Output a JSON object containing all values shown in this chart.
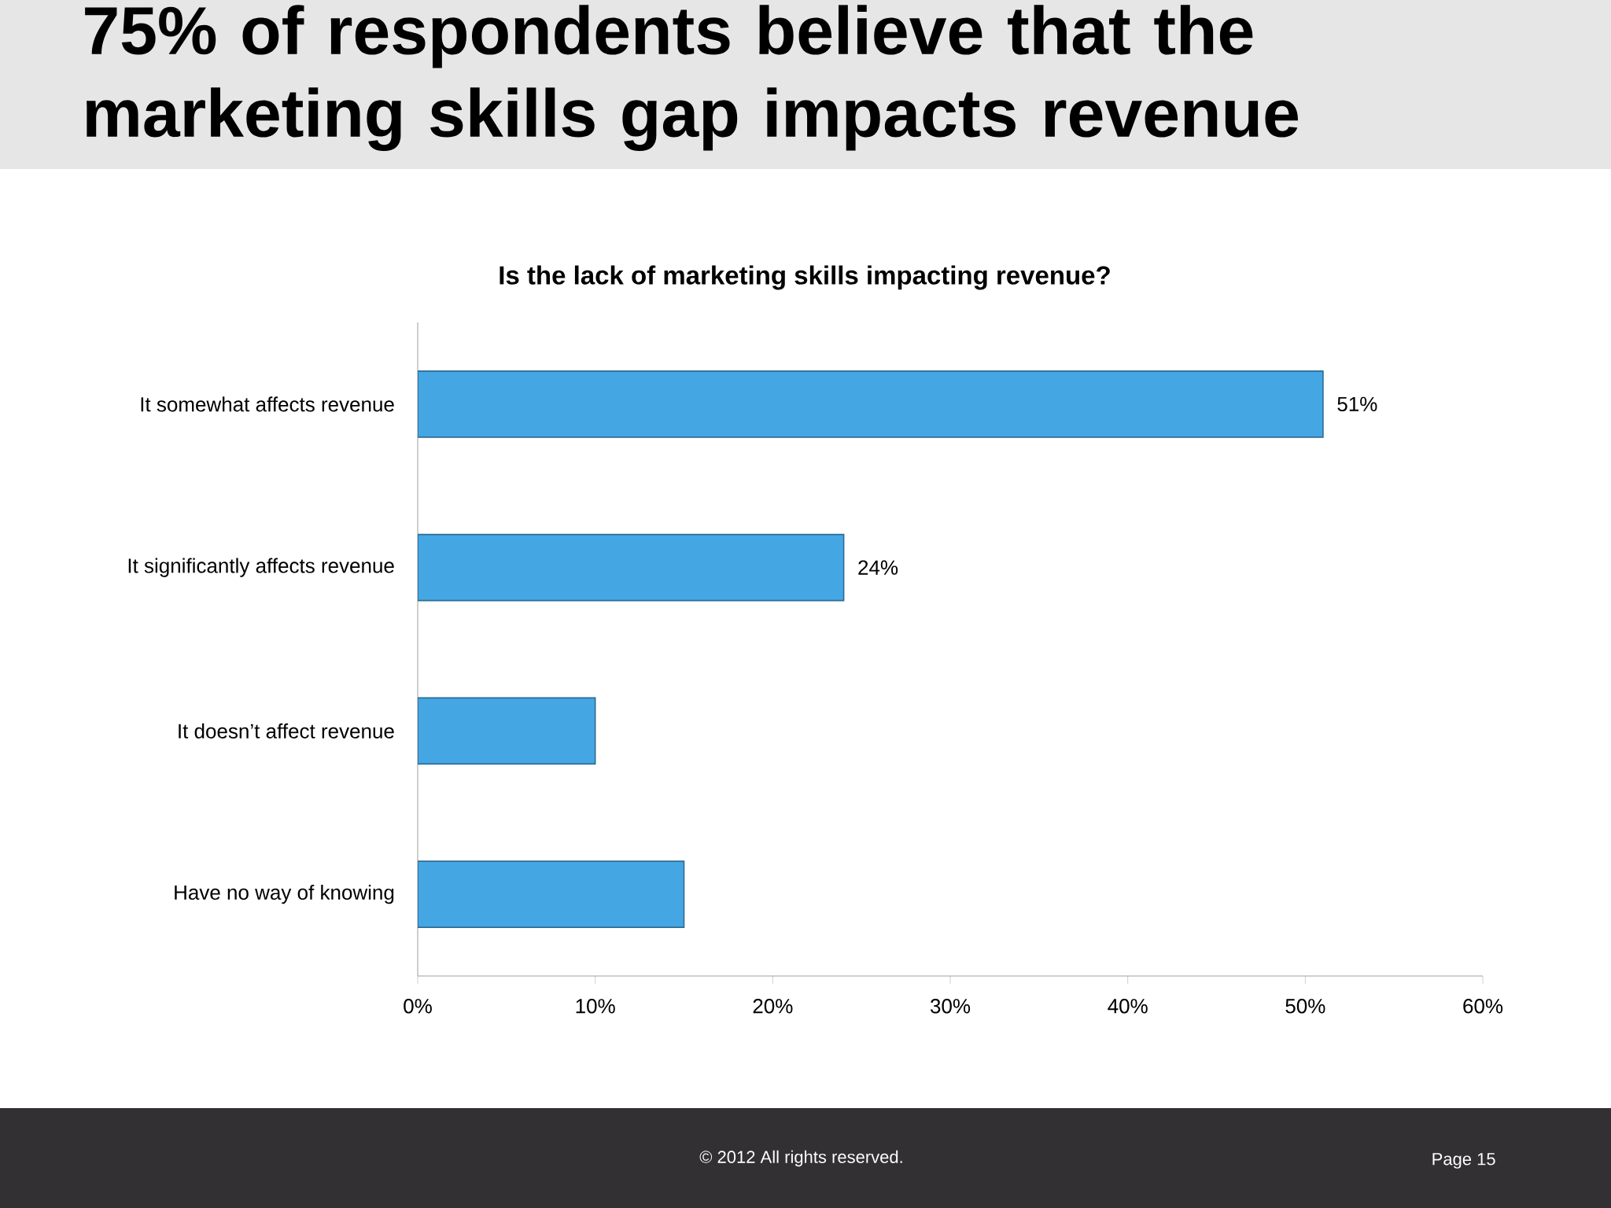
{
  "chart_data": {
    "type": "bar",
    "orientation": "horizontal",
    "title": "75% of respondents believe that the marketing skills gap impacts revenue",
    "subtitle": "Is the lack of marketing skills impacting revenue?",
    "categories": [
      "It somewhat affects revenue",
      "It significantly affects revenue",
      "It doesn’t affect revenue",
      "Have no way of knowing"
    ],
    "values": [
      51,
      24,
      10,
      15
    ],
    "color": "#45a6e4",
    "value_labels": [
      "51%",
      "24%",
      null,
      null
    ],
    "xlim": [
      0,
      60
    ],
    "xticks": [
      {
        "value": 0,
        "label": "0%"
      },
      {
        "value": 10,
        "label": "10%"
      },
      {
        "value": 20,
        "label": "20%"
      },
      {
        "value": 30,
        "label": "30%"
      },
      {
        "value": 40,
        "label": "40%"
      },
      {
        "value": 50,
        "label": "50%"
      },
      {
        "value": 60,
        "label": "60%"
      }
    ],
    "annotations": [
      "© 2012 All rights reserved.",
      "Page 15"
    ]
  }
}
